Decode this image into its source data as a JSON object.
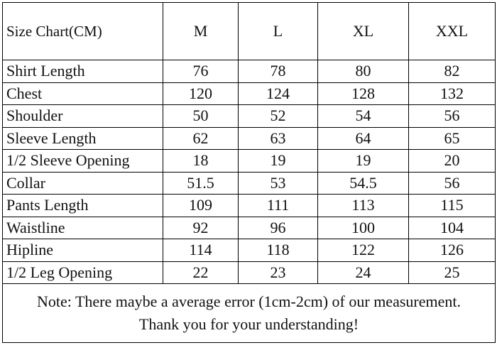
{
  "table": {
    "header": [
      "Size Chart(CM)",
      "M",
      "L",
      "XL",
      "XXL"
    ],
    "rows": [
      [
        "Shirt Length",
        76,
        78,
        80,
        82
      ],
      [
        "Chest",
        120,
        124,
        128,
        132
      ],
      [
        "Shoulder",
        50,
        52,
        54,
        56
      ],
      [
        "Sleeve Length",
        62,
        63,
        64,
        65
      ],
      [
        "1/2 Sleeve Opening",
        18,
        19,
        19,
        20
      ],
      [
        "Collar",
        51.5,
        53,
        54.5,
        56
      ],
      [
        "Pants Length",
        109,
        111,
        113,
        115
      ],
      [
        "Waistline",
        92,
        96,
        100,
        104
      ],
      [
        "Hipline",
        114,
        118,
        122,
        126
      ],
      [
        "1/2 Leg Opening",
        22,
        23,
        24,
        25
      ]
    ],
    "note": [
      "Note: There maybe a average error (1cm-2cm) of our measurement.",
      "Thank you for your understanding!"
    ]
  }
}
